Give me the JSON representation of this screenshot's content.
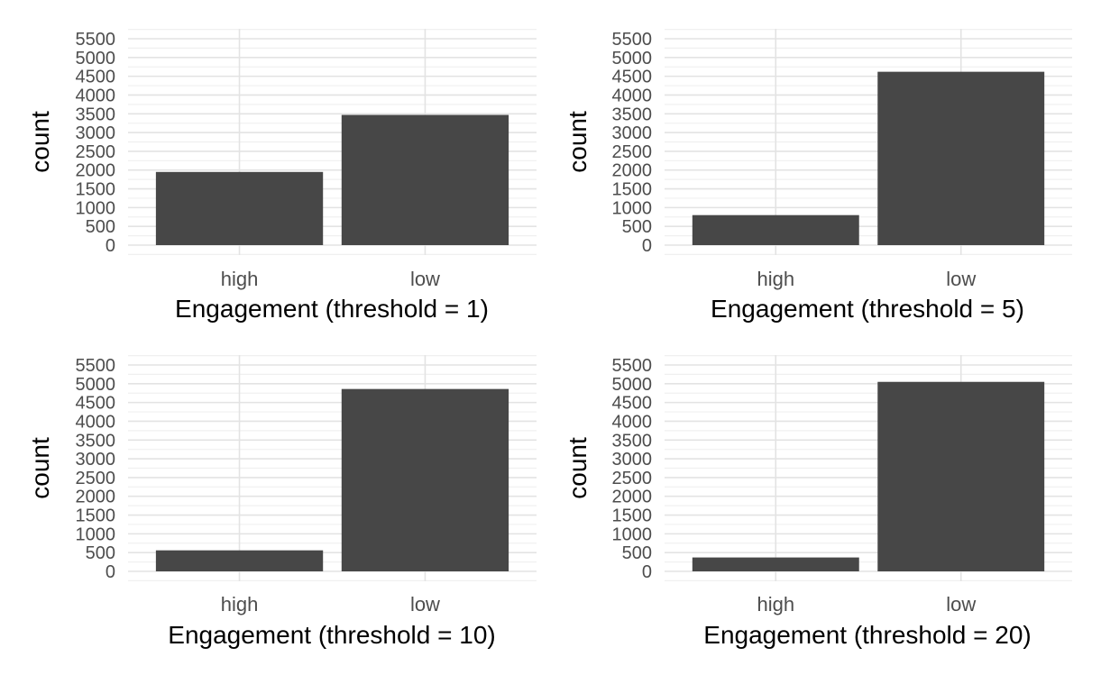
{
  "chart_data": [
    {
      "type": "bar",
      "categories": [
        "high",
        "low"
      ],
      "values": [
        1950,
        3470
      ],
      "xlabel": "Engagement (threshold = 1)",
      "ylabel": "count",
      "ylim": [
        0,
        5500
      ],
      "yticks": [
        "0",
        "500",
        "1000",
        "1500",
        "2000",
        "2500",
        "3000",
        "3500",
        "4000",
        "4500",
        "5000",
        "5500"
      ],
      "grid": true,
      "bar_color": "#474747"
    },
    {
      "type": "bar",
      "categories": [
        "high",
        "low"
      ],
      "values": [
        800,
        4620
      ],
      "xlabel": "Engagement (threshold = 5)",
      "ylabel": "count",
      "ylim": [
        0,
        5500
      ],
      "yticks": [
        "0",
        "500",
        "1000",
        "1500",
        "2000",
        "2500",
        "3000",
        "3500",
        "4000",
        "4500",
        "5000",
        "5500"
      ],
      "grid": true,
      "bar_color": "#474747"
    },
    {
      "type": "bar",
      "categories": [
        "high",
        "low"
      ],
      "values": [
        560,
        4860
      ],
      "xlabel": "Engagement (threshold = 10)",
      "ylabel": "count",
      "ylim": [
        0,
        5500
      ],
      "yticks": [
        "0",
        "500",
        "1000",
        "1500",
        "2000",
        "2500",
        "3000",
        "3500",
        "4000",
        "4500",
        "5000",
        "5500"
      ],
      "grid": true,
      "bar_color": "#474747"
    },
    {
      "type": "bar",
      "categories": [
        "high",
        "low"
      ],
      "values": [
        370,
        5050
      ],
      "xlabel": "Engagement (threshold = 20)",
      "ylabel": "count",
      "ylim": [
        0,
        5500
      ],
      "yticks": [
        "0",
        "500",
        "1000",
        "1500",
        "2000",
        "2500",
        "3000",
        "3500",
        "4000",
        "4500",
        "5000",
        "5500"
      ],
      "grid": true,
      "bar_color": "#474747"
    }
  ],
  "colors": {
    "background": "#ffffff",
    "grid_major": "#e3e3e3",
    "grid_minor": "#f0f0f0",
    "tick_text": "#4d4d4d",
    "axis_title": "#000000"
  }
}
